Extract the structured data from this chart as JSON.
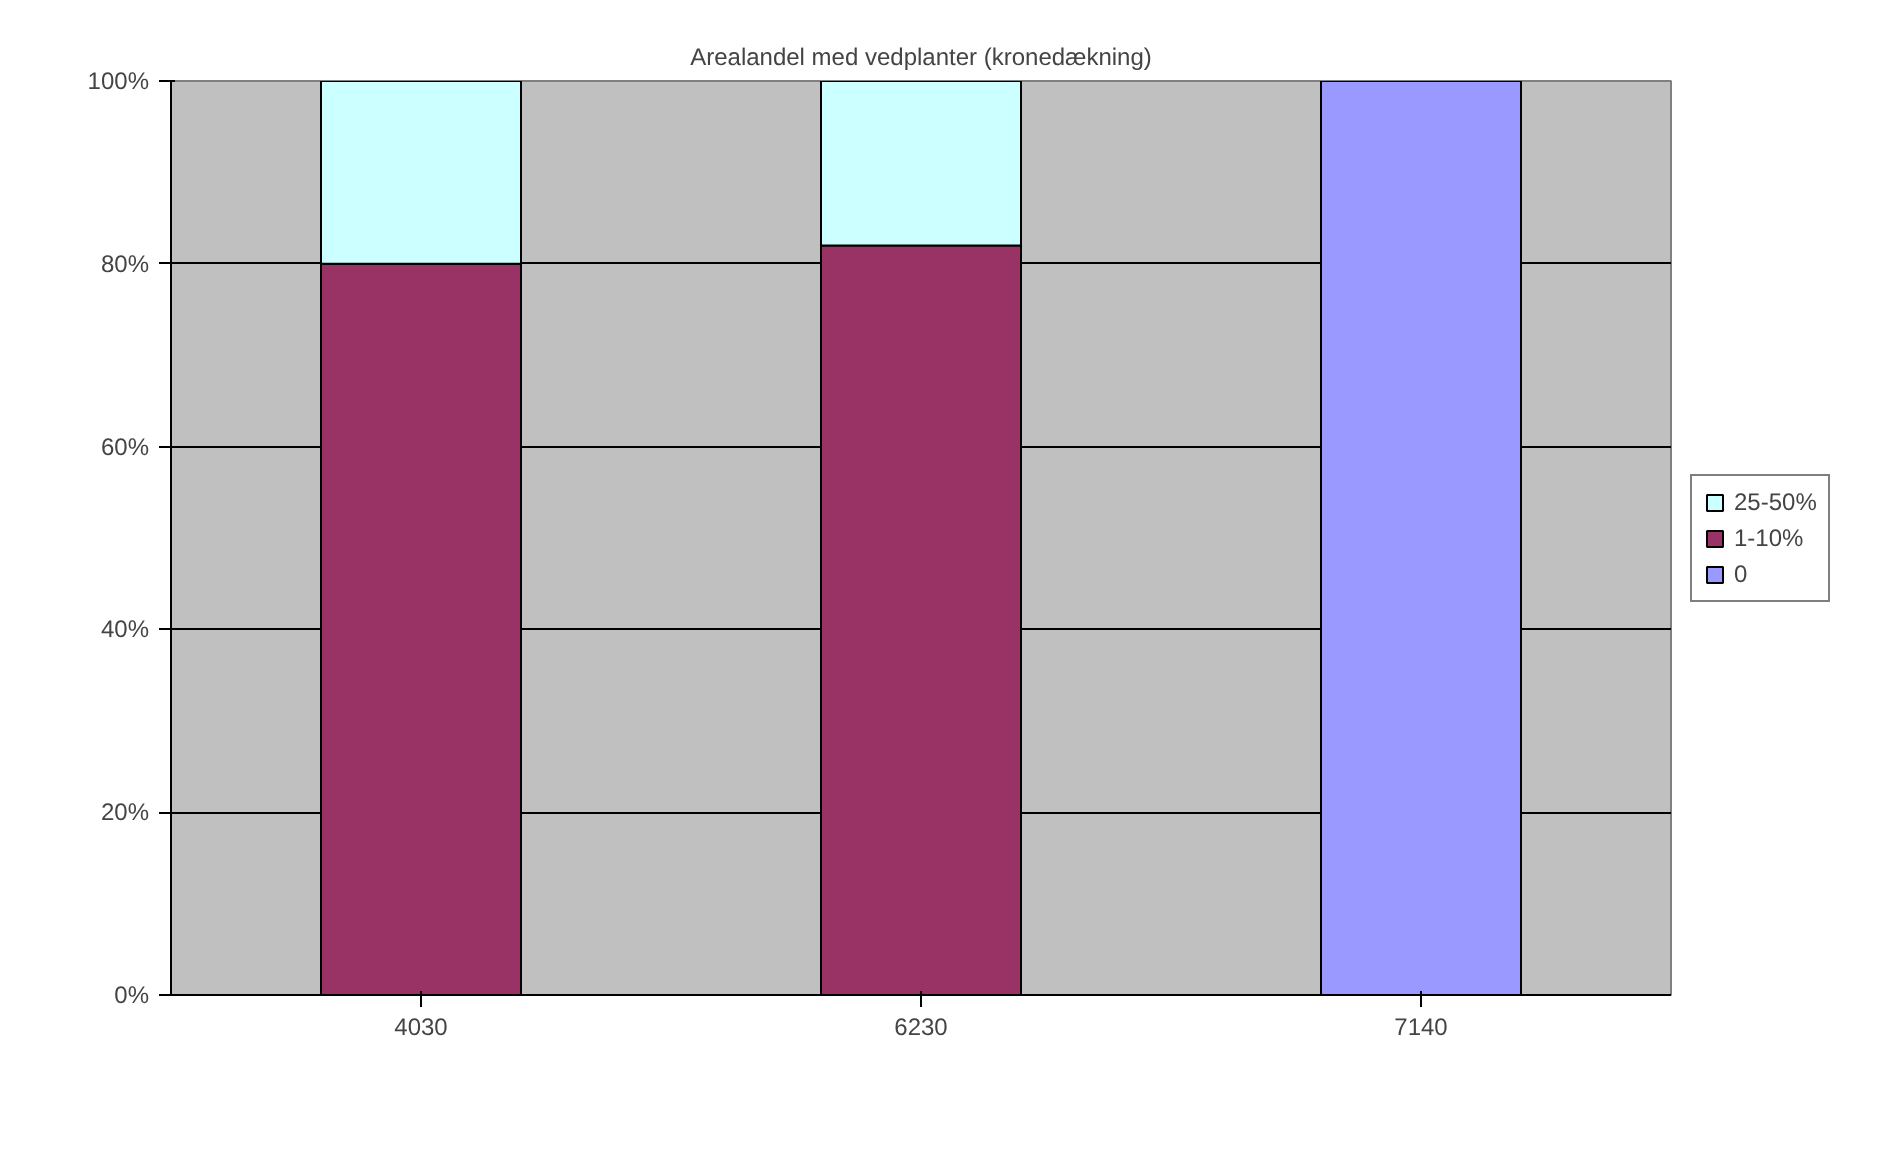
{
  "chart_data": {
    "type": "bar",
    "title": "Arealandel med vedplanter (kronedækning)",
    "categories": [
      "4030",
      "6230",
      "7140"
    ],
    "stacked": true,
    "series": [
      {
        "name": "0",
        "color": "#9999ff",
        "values": [
          null,
          null,
          100
        ]
      },
      {
        "name": "1-10%",
        "color": "#993366",
        "values": [
          80,
          82,
          null
        ]
      },
      {
        "name": "25-50%",
        "color": "#ccffff",
        "values": [
          20,
          18,
          null
        ]
      }
    ],
    "ylim": [
      0,
      100
    ],
    "yticks": [
      {
        "value": 0,
        "label": "0%"
      },
      {
        "value": 20,
        "label": "20%"
      },
      {
        "value": 40,
        "label": "40%"
      },
      {
        "value": 60,
        "label": "60%"
      },
      {
        "value": 80,
        "label": "80%"
      },
      {
        "value": 100,
        "label": "100%"
      }
    ],
    "grid": "y",
    "legend": "right"
  }
}
